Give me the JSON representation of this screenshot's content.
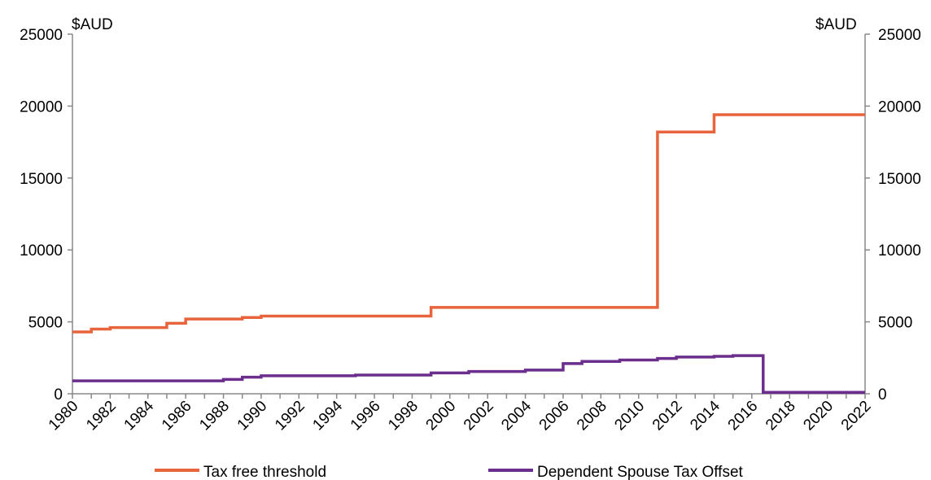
{
  "chart_data": {
    "type": "line",
    "step": true,
    "left_unit": "$AUD",
    "right_unit": "$AUD",
    "ylim": [
      0,
      25000
    ],
    "xlim": [
      1980,
      2022
    ],
    "y_ticks": [
      "0",
      "5000",
      "10000",
      "15000",
      "20000",
      "25000"
    ],
    "x_ticks": [
      "1980",
      "1982",
      "1984",
      "1986",
      "1988",
      "1990",
      "1992",
      "1994",
      "1996",
      "1998",
      "2000",
      "2002",
      "2004",
      "2006",
      "2008",
      "2010",
      "2012",
      "2014",
      "2016",
      "2018",
      "2020",
      "2022"
    ],
    "grid": false,
    "legend_position": "bottom",
    "series": [
      {
        "name": "Tax free threshold",
        "color": "#E8643C",
        "points": [
          [
            1980,
            4300
          ],
          [
            1981,
            4500
          ],
          [
            1982,
            4600
          ],
          [
            1985,
            4900
          ],
          [
            1986,
            5200
          ],
          [
            1989,
            5300
          ],
          [
            1990,
            5400
          ],
          [
            1999,
            6000
          ],
          [
            2011,
            18200
          ],
          [
            2014,
            19400
          ],
          [
            2022,
            19400
          ]
        ]
      },
      {
        "name": "Dependent Spouse Tax Offset",
        "color": "#6B2E8C",
        "points": [
          [
            1980,
            900
          ],
          [
            1988,
            1000
          ],
          [
            1989,
            1150
          ],
          [
            1990,
            1250
          ],
          [
            1995,
            1300
          ],
          [
            1999,
            1450
          ],
          [
            2001,
            1550
          ],
          [
            2004,
            1650
          ],
          [
            2006,
            2100
          ],
          [
            2007,
            2250
          ],
          [
            2009,
            2350
          ],
          [
            2011,
            2450
          ],
          [
            2012,
            2550
          ],
          [
            2014,
            2600
          ],
          [
            2015,
            2650
          ],
          [
            2016.6,
            100
          ],
          [
            2022,
            100
          ]
        ]
      }
    ]
  }
}
